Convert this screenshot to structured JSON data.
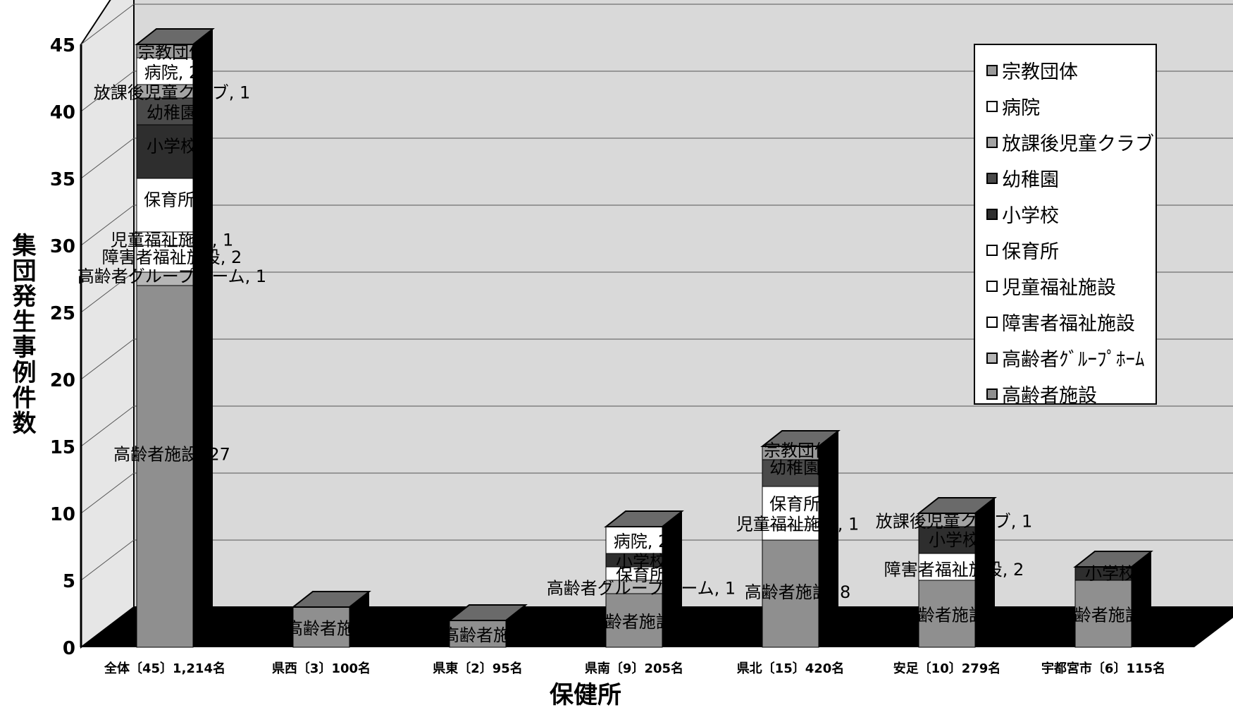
{
  "chart_data": {
    "type": "bar",
    "stacked": true,
    "three_d": true,
    "xlabel": "保健所",
    "ylabel": "集団発生事例件数",
    "ylim": [
      0,
      45
    ],
    "yticks": [
      "0",
      "5",
      "10",
      "15",
      "20",
      "25",
      "30",
      "35",
      "40",
      "45"
    ],
    "grid": true,
    "legend_position": "top-right",
    "categories": [
      "全体〔45〕1,214名",
      "県西〔3〕100名",
      "県東〔2〕95名",
      "県南〔9〕205名",
      "県北〔15〕420名",
      "安足〔10〕279名",
      "宇都宮市〔6〕115名"
    ],
    "series": [
      {
        "name": "高齢者施設",
        "color": "#8f8f8f",
        "values": [
          27,
          3,
          2,
          4,
          8,
          5,
          5
        ]
      },
      {
        "name": "高齢者ｸﾞﾙｰﾌﾟﾎｰﾑ",
        "color": "#b5b5b5",
        "values": [
          1,
          0,
          0,
          1,
          0,
          0,
          0
        ]
      },
      {
        "name": "障害者福祉施設",
        "color": "#ffffff",
        "values": [
          2,
          0,
          0,
          0,
          0,
          2,
          0
        ]
      },
      {
        "name": "児童福祉施設",
        "color": "#ffffff",
        "values": [
          1,
          0,
          0,
          0,
          1,
          0,
          0
        ]
      },
      {
        "name": "保育所",
        "color": "#ffffff",
        "values": [
          4,
          0,
          0,
          1,
          3,
          0,
          0
        ]
      },
      {
        "name": "小学校",
        "color": "#2e2e2e",
        "values": [
          4,
          0,
          0,
          1,
          0,
          2,
          1
        ]
      },
      {
        "name": "幼稚園",
        "color": "#4a4a4a",
        "values": [
          2,
          0,
          0,
          0,
          2,
          0,
          0
        ]
      },
      {
        "name": "放課後児童クラブ",
        "color": "#a3a3a3",
        "values": [
          1,
          0,
          0,
          0,
          0,
          1,
          0
        ]
      },
      {
        "name": "病院",
        "color": "#ffffff",
        "values": [
          2,
          0,
          0,
          2,
          0,
          0,
          0
        ]
      },
      {
        "name": "宗教団体",
        "color": "#9a9a9a",
        "values": [
          1,
          0,
          0,
          0,
          1,
          0,
          0
        ]
      }
    ],
    "data_labels": [
      {
        "bar": 0,
        "text": "宗教団体",
        "value": 44.5
      },
      {
        "bar": 0,
        "text": "病院, 2",
        "value": 43
      },
      {
        "bar": 0,
        "text": "放課後児童クラブ, 1",
        "value": 41.5
      },
      {
        "bar": 0,
        "text": "幼稚園",
        "value": 40
      },
      {
        "bar": 0,
        "text": "小学校",
        "value": 37.5
      },
      {
        "bar": 0,
        "text": "保育所,",
        "value": 33.5
      },
      {
        "bar": 0,
        "text": "児童福祉施設, 1",
        "value": 30.5
      },
      {
        "bar": 0,
        "text": "障害者福祉施設, 2",
        "value": 29.2
      },
      {
        "bar": 0,
        "text": "高齢者グループホーム, 1",
        "value": 27.8
      },
      {
        "bar": 0,
        "text": "高齢者施設, 27",
        "value": 14.5
      },
      {
        "bar": 1,
        "text": "高齢者施設",
        "value": 1.5
      },
      {
        "bar": 2,
        "text": "高齢者施設",
        "value": 1
      },
      {
        "bar": 3,
        "text": "病院, 2",
        "value": 8
      },
      {
        "bar": 3,
        "text": "小学校",
        "value": 6.5
      },
      {
        "bar": 3,
        "text": "保育所",
        "value": 5.5
      },
      {
        "bar": 3,
        "text": "高齢者グループホーム, 1",
        "value": 4.5
      },
      {
        "bar": 3,
        "text": "高齢者施設, 4",
        "value": 2
      },
      {
        "bar": 4,
        "text": "宗教団体",
        "value": 14.8
      },
      {
        "bar": 4,
        "text": "幼稚園,",
        "value": 13.5
      },
      {
        "bar": 4,
        "text": "保育所,",
        "value": 10.8
      },
      {
        "bar": 4,
        "text": "児童福祉施設, 1",
        "value": 9.3
      },
      {
        "bar": 4,
        "text": "高齢者施設, 8",
        "value": 4.2
      },
      {
        "bar": 5,
        "text": "放課後児童クラブ, 1",
        "value": 9.5
      },
      {
        "bar": 5,
        "text": "小学校",
        "value": 8.1
      },
      {
        "bar": 5,
        "text": "障害者福祉施設, 2",
        "value": 5.9
      },
      {
        "bar": 5,
        "text": "高齢者施設, 5",
        "value": 2.5
      },
      {
        "bar": 5,
        "text": "小学校",
        "value": 5.6,
        "on_bar": 6
      },
      {
        "bar": 6,
        "text": "高齢者施設, 5",
        "value": 2.5
      }
    ]
  },
  "legend": {
    "items": [
      {
        "label": "宗教団体",
        "color": "#9a9a9a"
      },
      {
        "label": "病院",
        "color": "#ffffff"
      },
      {
        "label": "放課後児童クラブ",
        "color": "#a3a3a3"
      },
      {
        "label": "幼稚園",
        "color": "#4a4a4a"
      },
      {
        "label": "小学校",
        "color": "#2e2e2e"
      },
      {
        "label": "保育所",
        "color": "#ffffff"
      },
      {
        "label": "児童福祉施設",
        "color": "#ffffff"
      },
      {
        "label": "障害者福祉施設",
        "color": "#ffffff"
      },
      {
        "label": "高齢者ｸﾞﾙｰﾌﾟﾎｰﾑ",
        "color": "#b5b5b5"
      },
      {
        "label": "高齢者施設",
        "color": "#8f8f8f"
      }
    ]
  },
  "colors": {
    "floor": "#000000",
    "wall": "#d9d9d9",
    "side": "#000000"
  }
}
